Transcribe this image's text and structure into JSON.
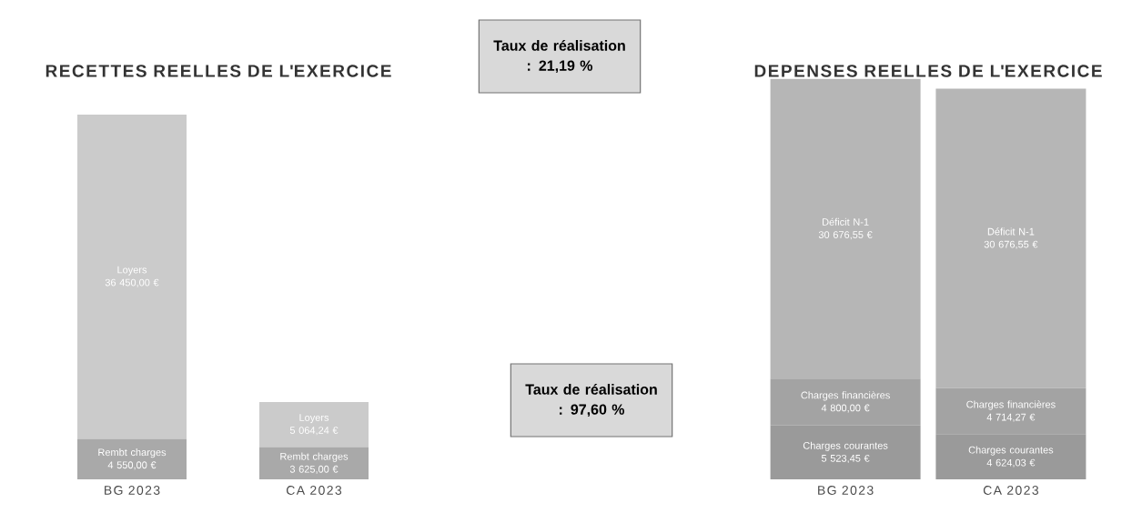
{
  "chart_data": [
    {
      "type": "bar",
      "title": "RECETTES REELLES DE L'EXERCICE",
      "categories": [
        "BG 2023",
        "CA 2023"
      ],
      "stacked": true,
      "series": [
        {
          "name": "Rembt charges",
          "color": "#a9a9a9",
          "values": [
            4550.0,
            3625.0
          ],
          "value_labels": [
            "4 550,00 €",
            "3 625,00 €"
          ]
        },
        {
          "name": "Loyers",
          "color": "#cbcbcb",
          "values": [
            36450.0,
            5064.24
          ],
          "value_labels": [
            "36 450,00 €",
            "5 064,24 €"
          ]
        }
      ],
      "annotations": [
        "Taux de réalisation : 21,19 %"
      ]
    },
    {
      "type": "bar",
      "title": "DEPENSES REELLES DE L'EXERCICE",
      "categories": [
        "BG 2023",
        "CA 2023"
      ],
      "stacked": true,
      "series": [
        {
          "name": "Charges courantes",
          "color": "#9a9a9a",
          "values": [
            5523.45,
            4624.03
          ],
          "value_labels": [
            "5 523,45 €",
            "4 624,03 €"
          ]
        },
        {
          "name": "Charges financières",
          "color": "#a3a3a3",
          "values": [
            4800.0,
            4714.27
          ],
          "value_labels": [
            "4 800,00 €",
            "4 714,27 €"
          ]
        },
        {
          "name": "Déficit N-1",
          "color": "#b6b6b6",
          "values": [
            30676.55,
            30676.55
          ],
          "value_labels": [
            "30 676,55 €",
            "30 676,55 €"
          ]
        }
      ],
      "annotations": [
        "Taux de réalisation : 97,60 %"
      ]
    }
  ]
}
